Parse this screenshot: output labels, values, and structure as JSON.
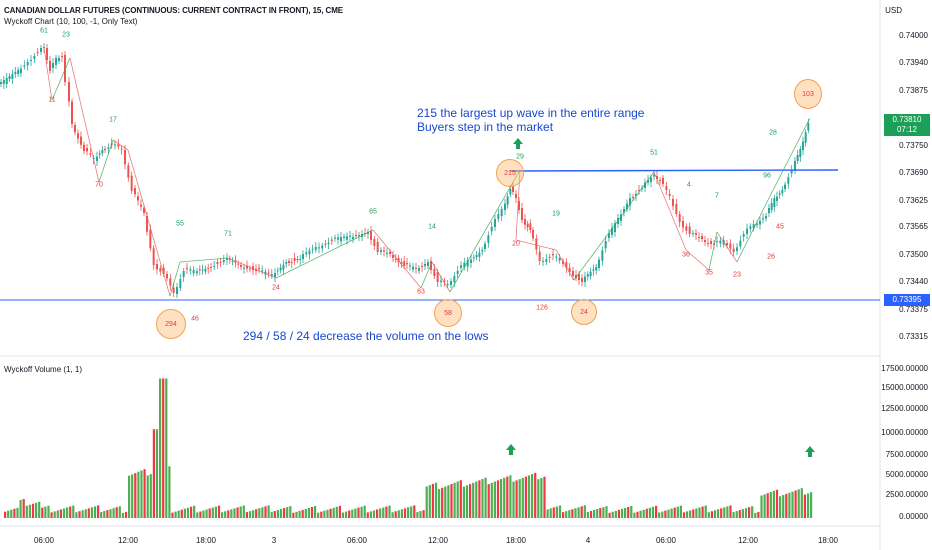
{
  "header": {
    "symbol_title": "CANADIAN DOLLAR FUTURES (CONTINUOUS: CURRENT CONTRACT IN FRONT), 15, CME",
    "indicator1": "Wyckoff Chart (10, 100, -1, Only Text)",
    "indicator2": "Wyckoff Volume (1, 1)",
    "currency": "USD"
  },
  "price_axis": [
    "0.74000",
    "0.73940",
    "0.73875",
    "0.73750",
    "0.73690",
    "0.73625",
    "0.73565",
    "0.73500",
    "0.73440",
    "0.73375",
    "0.73315"
  ],
  "price_badges": {
    "last": "0.73810",
    "countdown": "07:12",
    "level": "0.73395",
    "last_color": "#1d9f57",
    "level_color": "#2962ff"
  },
  "volume_axis": [
    "17500.00000",
    "15000.00000",
    "12500.00000",
    "10000.00000",
    "7500.00000",
    "5000.00000",
    "2500.00000",
    "0.00000"
  ],
  "time_axis": [
    "06:00",
    "12:00",
    "18:00",
    "3",
    "06:00",
    "12:00",
    "18:00",
    "4",
    "06:00",
    "12:00",
    "18:00"
  ],
  "annotations": {
    "top_line1": "215 the largest up wave in the entire range",
    "top_line2": "Buyers step in the market",
    "bottom": "294 / 58 / 24 decrease the volume on the lows"
  },
  "wave_labels_up": [
    "61",
    "23",
    "17",
    "55",
    "71",
    "65",
    "14",
    "29",
    "19",
    "51",
    "4",
    "7",
    "96",
    "28"
  ],
  "wave_labels_down": [
    "11",
    "70",
    "46",
    "24",
    "63",
    "20",
    "126",
    "36",
    "35",
    "23",
    "26",
    "45"
  ],
  "circle_labels": [
    "294",
    "58",
    "24",
    "215",
    "103"
  ],
  "colors": {
    "up": "#26a69a",
    "down": "#ef5350",
    "vol_up": "#4caf50",
    "vol_down": "#f23645",
    "line": "#2962ff",
    "wave": "#e35d5d",
    "wave_up": "#33a852"
  }
}
